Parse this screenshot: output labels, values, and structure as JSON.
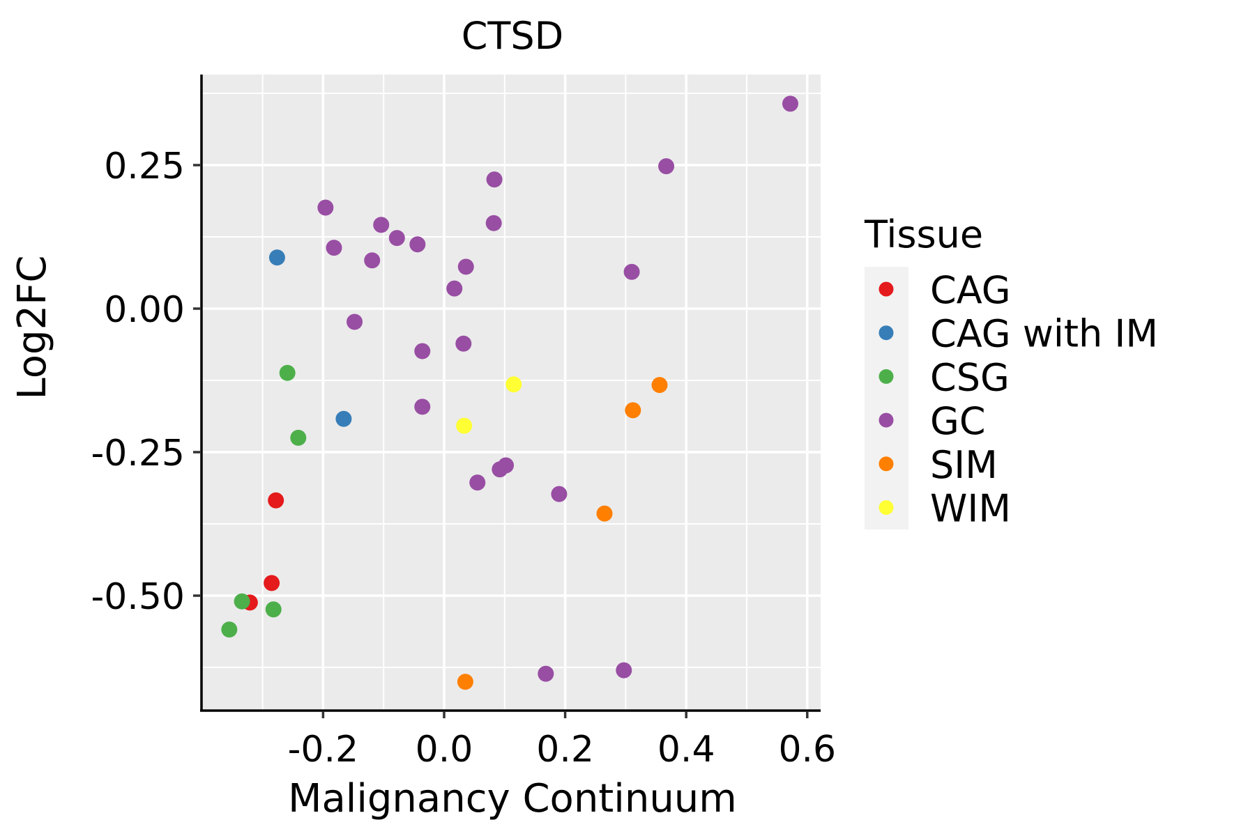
{
  "chart_data": {
    "type": "scatter",
    "title": "CTSD",
    "xlabel": "Malignancy Continuum",
    "ylabel": "Log2FC",
    "xlim": [
      -0.4,
      0.625
    ],
    "ylim": [
      -0.7,
      0.41
    ],
    "xticks": [
      -0.2,
      0.0,
      0.2,
      0.4,
      0.6
    ],
    "xtick_labels": [
      "-0.2",
      "0.0",
      "0.2",
      "0.4",
      "0.6"
    ],
    "yticks": [
      0.25,
      0.0,
      -0.25,
      -0.5
    ],
    "ytick_labels": [
      "0.25",
      "0.00",
      "-0.25",
      "-0.50"
    ],
    "x_minor_grid": [
      -0.3,
      -0.1,
      0.1,
      0.3,
      0.5
    ],
    "y_minor_grid": [
      0.375,
      0.125,
      -0.125,
      -0.375,
      -0.625
    ],
    "grid": true,
    "panel_background": "#ebebeb",
    "legend": {
      "title": "Tissue",
      "position": "right"
    },
    "series": [
      {
        "name": "CAG",
        "color": "#e41a1c",
        "points": [
          [
            -0.278,
            -0.334
          ],
          [
            -0.285,
            -0.478
          ],
          [
            -0.321,
            -0.512
          ]
        ]
      },
      {
        "name": "CAG with IM",
        "color": "#377eb8",
        "points": [
          [
            -0.276,
            0.089
          ],
          [
            -0.166,
            -0.192
          ]
        ]
      },
      {
        "name": "CSG",
        "color": "#4daf4a",
        "points": [
          [
            -0.259,
            -0.112
          ],
          [
            -0.241,
            -0.225
          ],
          [
            -0.334,
            -0.51
          ],
          [
            -0.282,
            -0.524
          ],
          [
            -0.355,
            -0.559
          ]
        ]
      },
      {
        "name": "GC",
        "color": "#984ea3",
        "points": [
          [
            0.572,
            0.357
          ],
          [
            0.367,
            0.248
          ],
          [
            0.083,
            0.225
          ],
          [
            -0.196,
            0.176
          ],
          [
            -0.104,
            0.146
          ],
          [
            0.082,
            0.149
          ],
          [
            -0.078,
            0.123
          ],
          [
            -0.044,
            0.112
          ],
          [
            -0.182,
            0.106
          ],
          [
            -0.119,
            0.084
          ],
          [
            0.036,
            0.073
          ],
          [
            0.31,
            0.064
          ],
          [
            0.017,
            0.035
          ],
          [
            -0.148,
            -0.023
          ],
          [
            0.032,
            -0.061
          ],
          [
            -0.036,
            -0.074
          ],
          [
            -0.036,
            -0.171
          ],
          [
            0.102,
            -0.273
          ],
          [
            0.092,
            -0.28
          ],
          [
            0.055,
            -0.303
          ],
          [
            0.19,
            -0.323
          ],
          [
            0.168,
            -0.636
          ],
          [
            0.297,
            -0.63
          ]
        ]
      },
      {
        "name": "SIM",
        "color": "#ff7f00",
        "points": [
          [
            0.356,
            -0.133
          ],
          [
            0.312,
            -0.177
          ],
          [
            0.265,
            -0.357
          ],
          [
            0.035,
            -0.65
          ]
        ]
      },
      {
        "name": "WIM",
        "color": "#ffff33",
        "points": [
          [
            0.115,
            -0.132
          ],
          [
            0.033,
            -0.204
          ]
        ]
      }
    ]
  }
}
